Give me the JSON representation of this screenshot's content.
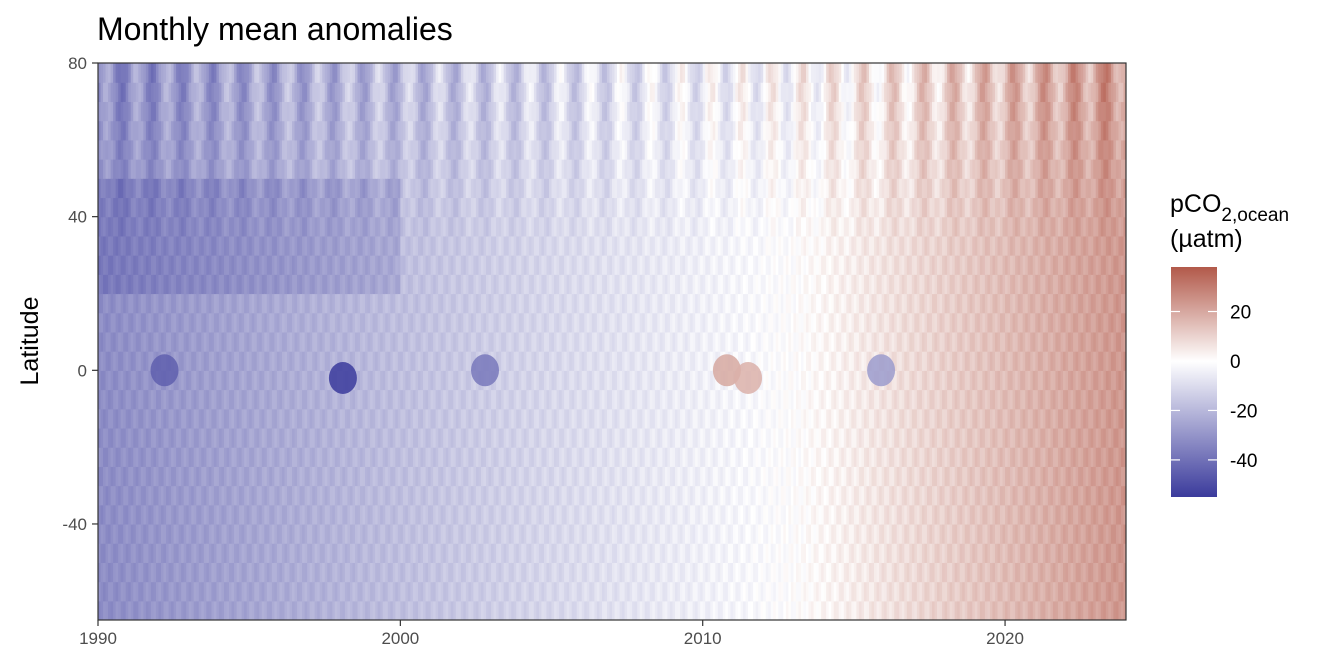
{
  "chart_data": {
    "type": "heatmap",
    "title": "Monthly mean anomalies",
    "xlabel": "",
    "ylabel": "Latitude",
    "xlim": [
      1990,
      2024
    ],
    "ylim": [
      -65,
      80
    ],
    "x_ticks": [
      "1990",
      "2000",
      "2010",
      "2020"
    ],
    "y_ticks": [
      "80",
      "40",
      "0",
      "-40"
    ],
    "grid": false,
    "colorbar": {
      "title_main": "pCO",
      "title_sub": "2,ocean",
      "title_units": "(µatm)",
      "ticks": [
        "20",
        "0",
        "-20",
        "-40"
      ],
      "range": [
        -55,
        38
      ],
      "colors": {
        "low": "#3b3b9c",
        "mid": "#ffffff",
        "high": "#b2594a"
      },
      "placement": "right"
    },
    "trend": {
      "description": "anomaly increases roughly linearly with time",
      "points": [
        {
          "year": 1990,
          "value": -32
        },
        {
          "year": 2000,
          "value": -18
        },
        {
          "year": 2013,
          "value": 0
        },
        {
          "year": 2024,
          "value": 24
        }
      ]
    },
    "features": {
      "equatorial_lows": [
        {
          "year": 1992.2,
          "lat": 0,
          "value": -45
        },
        {
          "year": 1998.1,
          "lat": -2,
          "value": -55
        },
        {
          "year": 2002.8,
          "lat": 0,
          "value": -38
        },
        {
          "year": 2015.9,
          "lat": 0,
          "value": -28
        }
      ],
      "equatorial_highs": [
        {
          "year": 2010.8,
          "lat": 0,
          "value": 20
        },
        {
          "year": 2011.5,
          "lat": -2,
          "value": 18
        }
      ]
    }
  }
}
